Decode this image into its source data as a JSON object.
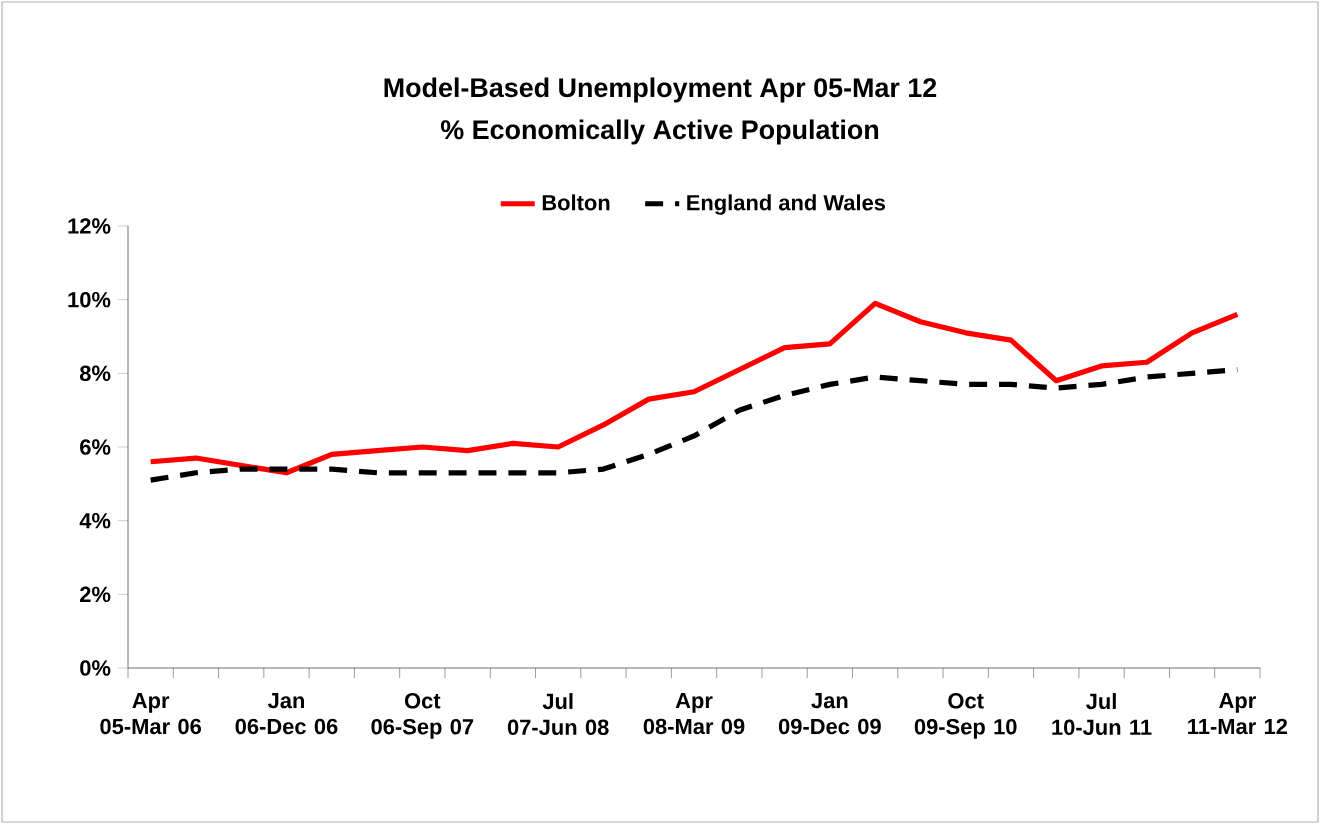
{
  "chart_data": {
    "type": "line",
    "title": "Model-Based Unemployment  Apr 05-Mar 12",
    "subtitle": "%  Economically Active Population",
    "categories": [
      "Apr 05-Mar 06",
      null,
      null,
      "Jan 06-Dec 06",
      null,
      null,
      "Oct 06-Sep 07",
      null,
      null,
      "Jul 07-Jun 08",
      null,
      null,
      "Apr 08-Mar 09",
      null,
      null,
      "Jan 09-Dec 09",
      null,
      null,
      "Oct 09-Sep 10",
      null,
      null,
      "Jul 10-Jun 11",
      null,
      null,
      "Apr 11-Mar 12"
    ],
    "series": [
      {
        "name": "Bolton",
        "color": "#ff0000",
        "line_style": "solid",
        "values": [
          5.6,
          5.7,
          5.5,
          5.3,
          5.8,
          5.9,
          6.0,
          5.9,
          6.1,
          6.0,
          6.6,
          7.3,
          7.5,
          8.1,
          8.7,
          8.8,
          9.9,
          9.4,
          9.1,
          8.9,
          7.8,
          8.2,
          8.3,
          9.1,
          9.6
        ]
      },
      {
        "name": "England and Wales",
        "color": "#000000",
        "line_style": "dashed",
        "values": [
          5.1,
          5.3,
          5.4,
          5.4,
          5.4,
          5.3,
          5.3,
          5.3,
          5.3,
          5.3,
          5.4,
          5.8,
          6.3,
          7.0,
          7.4,
          7.7,
          7.9,
          7.8,
          7.7,
          7.7,
          7.6,
          7.7,
          7.9,
          8.0,
          8.1
        ]
      }
    ],
    "ylim": [
      0,
      12
    ],
    "yticks": [
      {
        "value": 0,
        "label": "0%"
      },
      {
        "value": 2,
        "label": "2%"
      },
      {
        "value": 4,
        "label": "4%"
      },
      {
        "value": 6,
        "label": "6%"
      },
      {
        "value": 8,
        "label": "8%"
      },
      {
        "value": 10,
        "label": "10%"
      },
      {
        "value": 12,
        "label": "12%"
      }
    ],
    "legend": "top",
    "grid": false,
    "marker": "none"
  }
}
